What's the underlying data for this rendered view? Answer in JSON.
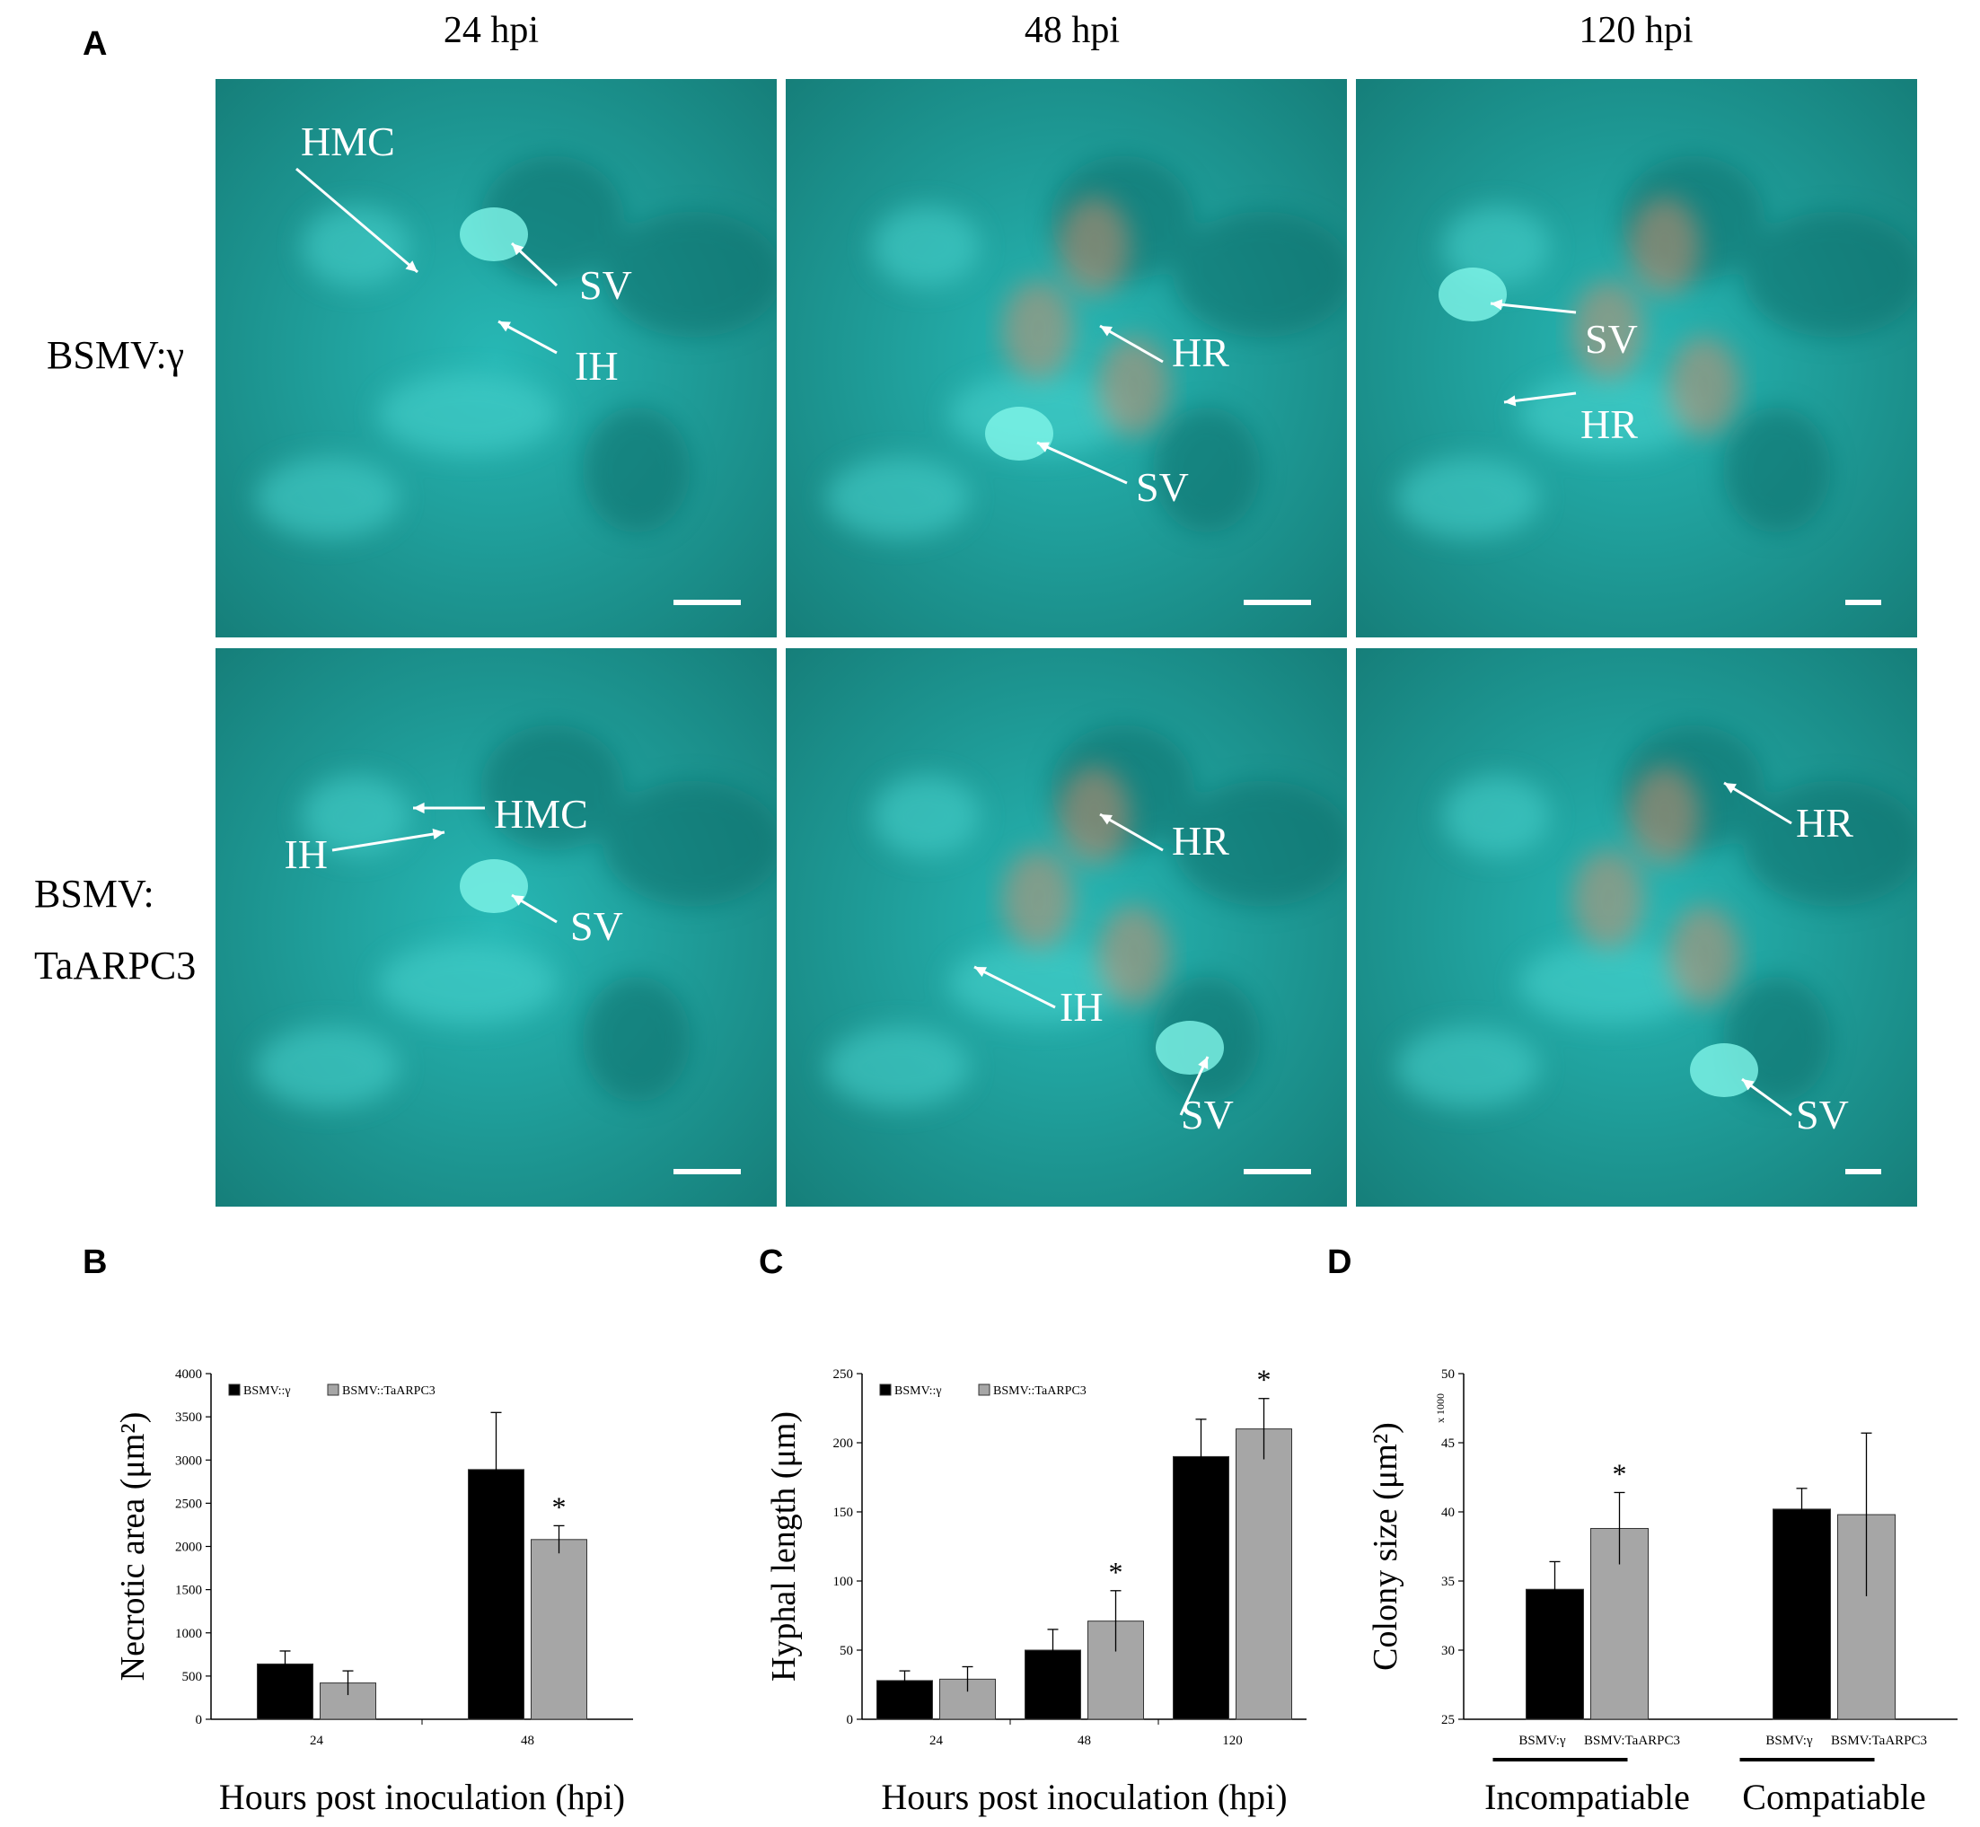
{
  "panel_A": {
    "letter": "A",
    "column_headers": [
      "24 hpi",
      "48 hpi",
      "120 hpi"
    ],
    "row_labels": [
      "BSMV:γ",
      "BSMV:",
      "TaARPC3"
    ],
    "annotations": {
      "r0c0": [
        "HMC",
        "SV",
        "IH"
      ],
      "r0c1": [
        "HR",
        "SV"
      ],
      "r0c2": [
        "SV",
        "HR"
      ],
      "r1c0": [
        "HMC",
        "IH",
        "SV"
      ],
      "r1c1": [
        "HR",
        "IH",
        "SV"
      ],
      "r1c2": [
        "HR",
        "SV"
      ]
    },
    "colors": {
      "tissue": "#27b8b5",
      "tissue_dark": "#167f7a",
      "hr": "#d98a6a"
    }
  },
  "chart_data": [
    {
      "panel": "B",
      "type": "bar",
      "xlabel": "Hours post inoculation (hpi)",
      "ylabel": "Necrotic area (μm²)",
      "categories": [
        "24",
        "48"
      ],
      "ylim": [
        0,
        4000
      ],
      "yticks": [
        0,
        500,
        1000,
        1500,
        2000,
        2500,
        3000,
        3500,
        4000
      ],
      "series": [
        {
          "name": "BSMV::γ",
          "color": "#000000",
          "values": [
            640,
            2890
          ],
          "errors": [
            150,
            660
          ]
        },
        {
          "name": "BSMV::TaARPC3",
          "color": "#a6a6a6",
          "values": [
            420,
            2080
          ],
          "errors": [
            140,
            160
          ]
        }
      ],
      "significance": [
        {
          "category": "48",
          "series": "BSMV::TaARPC3",
          "mark": "*"
        }
      ]
    },
    {
      "panel": "C",
      "type": "bar",
      "xlabel": "Hours post inoculation (hpi)",
      "ylabel": "Hyphal length (μm)",
      "categories": [
        "24",
        "48",
        "120"
      ],
      "ylim": [
        0,
        250
      ],
      "yticks": [
        0,
        50,
        100,
        150,
        200,
        250
      ],
      "series": [
        {
          "name": "BSMV::γ",
          "color": "#000000",
          "values": [
            28,
            50,
            190
          ],
          "errors": [
            7,
            15,
            27
          ]
        },
        {
          "name": "BSMV::TaARPC3",
          "color": "#a6a6a6",
          "values": [
            29,
            71,
            210
          ],
          "errors": [
            9,
            22,
            22
          ]
        }
      ],
      "significance": [
        {
          "category": "48",
          "series": "BSMV::TaARPC3",
          "mark": "*"
        },
        {
          "category": "120",
          "series": "BSMV::TaARPC3",
          "mark": "*"
        }
      ]
    },
    {
      "panel": "D",
      "type": "bar",
      "xlabel_groups": [
        "Incompatiable",
        "Compatiable"
      ],
      "ylabel": "Colony size (μm²)",
      "yscale_note": "x 1000",
      "group_categories": [
        "BSMV:γ",
        "BSMV:TaARPC3"
      ],
      "ylim": [
        25,
        50
      ],
      "yticks": [
        25,
        30,
        35,
        40,
        45,
        50
      ],
      "series": [
        {
          "name": "BSMV:γ",
          "color": "#000000",
          "values": [
            34.4,
            40.2
          ],
          "errors": [
            2.0,
            1.5
          ]
        },
        {
          "name": "BSMV:TaARPC3",
          "color": "#a6a6a6",
          "values": [
            38.8,
            39.8
          ],
          "errors": [
            2.6,
            5.9
          ]
        }
      ],
      "significance": [
        {
          "group": "Incompatiable",
          "series": "BSMV:TaARPC3",
          "mark": "*"
        }
      ]
    }
  ]
}
